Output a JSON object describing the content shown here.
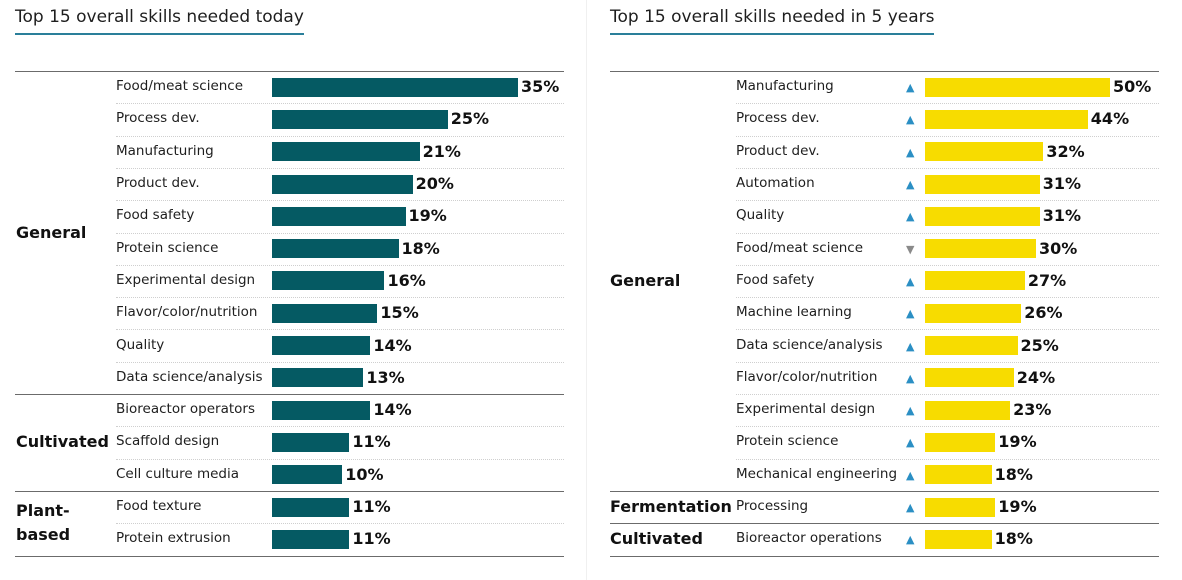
{
  "chart_data": [
    {
      "type": "bar",
      "orientation": "horizontal",
      "title": "Top 15 overall skills needed today",
      "color": "#055a63",
      "unit": "%",
      "xlim": [
        0,
        35
      ],
      "groups": [
        {
          "name": "General",
          "items": [
            {
              "label": "Food/meat science",
              "value": 35
            },
            {
              "label": "Process dev.",
              "value": 25
            },
            {
              "label": "Manufacturing",
              "value": 21
            },
            {
              "label": "Product dev.",
              "value": 20
            },
            {
              "label": "Food safety",
              "value": 19
            },
            {
              "label": "Protein science",
              "value": 18
            },
            {
              "label": "Experimental design",
              "value": 16
            },
            {
              "label": "Flavor/color/nutrition",
              "value": 15
            },
            {
              "label": "Quality",
              "value": 14
            },
            {
              "label": "Data science/analysis",
              "value": 13
            }
          ]
        },
        {
          "name": "Cultivated",
          "items": [
            {
              "label": "Bioreactor operators",
              "value": 14
            },
            {
              "label": "Scaffold design",
              "value": 11
            },
            {
              "label": "Cell culture media",
              "value": 10
            }
          ]
        },
        {
          "name": "Plant-based",
          "name_lines": [
            "Plant-",
            "based"
          ],
          "items": [
            {
              "label": "Food texture",
              "value": 11
            },
            {
              "label": "Protein extrusion",
              "value": 11
            }
          ]
        }
      ]
    },
    {
      "type": "bar",
      "orientation": "horizontal",
      "title": "Top 15 overall skills needed in 5 years",
      "color": "#f7dc00",
      "unit": "%",
      "xlim": [
        0,
        50
      ],
      "trend_colors": {
        "up": "#2b8fc4",
        "down": "#8a8a8a"
      },
      "groups": [
        {
          "name": "General",
          "items": [
            {
              "label": "Manufacturing",
              "value": 50,
              "trend": "up"
            },
            {
              "label": "Process dev.",
              "value": 44,
              "trend": "up"
            },
            {
              "label": "Product dev.",
              "value": 32,
              "trend": "up"
            },
            {
              "label": "Automation",
              "value": 31,
              "trend": "up"
            },
            {
              "label": "Quality",
              "value": 31,
              "trend": "up"
            },
            {
              "label": "Food/meat science",
              "value": 30,
              "trend": "down"
            },
            {
              "label": "Food safety",
              "value": 27,
              "trend": "up"
            },
            {
              "label": "Machine learning",
              "value": 26,
              "trend": "up"
            },
            {
              "label": "Data science/analysis",
              "value": 25,
              "trend": "up"
            },
            {
              "label": "Flavor/color/nutrition",
              "value": 24,
              "trend": "up"
            },
            {
              "label": "Experimental design",
              "value": 23,
              "trend": "up"
            },
            {
              "label": "Protein science",
              "value": 19,
              "trend": "up"
            },
            {
              "label": "Mechanical engineering",
              "value": 18,
              "trend": "up"
            }
          ]
        },
        {
          "name": "Fermentation",
          "items": [
            {
              "label": "Processing",
              "value": 19,
              "trend": "up"
            }
          ]
        },
        {
          "name": "Cultivated",
          "items": [
            {
              "label": "Bioreactor operations",
              "value": 18,
              "trend": "up"
            }
          ]
        }
      ]
    }
  ]
}
